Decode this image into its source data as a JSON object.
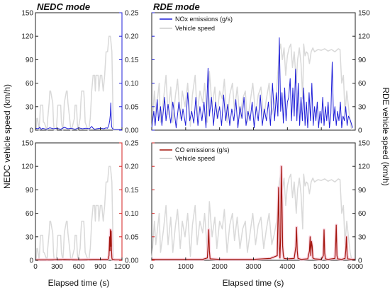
{
  "chart_data": {
    "type": "line",
    "titles": {
      "nedc": "NEDC mode",
      "rde": "RDE mode"
    },
    "axes": {
      "x_label": "Elapsed time (s)",
      "left_label": "NEDC vehicle speed (km/h)",
      "right_label": "RDE vehicle speed (km/h)",
      "nedc_x": {
        "min": 0,
        "max": 1200,
        "ticks": [
          0,
          300,
          600,
          900,
          1200
        ]
      },
      "rde_x": {
        "min": 0,
        "max": 6000,
        "ticks": [
          0,
          1000,
          2000,
          3000,
          4000,
          5000,
          6000
        ]
      },
      "speed": {
        "min": 0,
        "max": 150,
        "ticks": [
          0,
          30,
          60,
          90,
          120,
          150
        ]
      },
      "emission": {
        "min": 0,
        "max": 0.25,
        "ticks": [
          0.0,
          0.05,
          0.1,
          0.15,
          0.2,
          0.25
        ]
      }
    },
    "legend": {
      "top": [
        "NOx emissions  (g/s)",
        "Vehicle speed"
      ],
      "bottom": [
        "CO emissions (g/s)",
        "Vehicle speed"
      ]
    },
    "colors": {
      "nox": "#1f1fd8",
      "co": "#a3160d",
      "speed": "#d9d9d9",
      "co_shadow": "#f7c6d6",
      "emission_axis_blue": "#1f1fd8",
      "emission_axis_red": "#d42020"
    },
    "nedc_speed": {
      "x": [
        0,
        10,
        20,
        30,
        50,
        60,
        70,
        100,
        110,
        120,
        160,
        170,
        190,
        200,
        210,
        240,
        250,
        260,
        290,
        300,
        310,
        350,
        360,
        380,
        390,
        400,
        430,
        440,
        450,
        480,
        490,
        500,
        540,
        550,
        570,
        580,
        590,
        620,
        630,
        640,
        670,
        680,
        690,
        730,
        740,
        760,
        770,
        780,
        800,
        820,
        830,
        840,
        870,
        880,
        900,
        920,
        940,
        960,
        980,
        990,
        1000,
        1020,
        1040,
        1060,
        1080,
        1100,
        1120,
        1140,
        1160,
        1180
      ],
      "y": [
        0,
        0,
        15,
        15,
        0,
        15,
        32,
        32,
        10,
        10,
        0,
        15,
        35,
        50,
        50,
        35,
        10,
        0,
        0,
        15,
        32,
        32,
        10,
        0,
        15,
        35,
        50,
        50,
        35,
        10,
        0,
        0,
        15,
        32,
        32,
        10,
        0,
        15,
        35,
        50,
        50,
        35,
        10,
        0,
        0,
        15,
        32,
        50,
        70,
        70,
        50,
        70,
        70,
        50,
        70,
        70,
        50,
        70,
        100,
        100,
        100,
        120,
        120,
        100,
        0,
        0,
        0,
        0,
        0,
        0
      ]
    },
    "nedc_nox": {
      "x": [
        0,
        40,
        60,
        80,
        100,
        150,
        200,
        250,
        300,
        350,
        400,
        450,
        500,
        550,
        600,
        650,
        700,
        750,
        780,
        800,
        820,
        850,
        900,
        950,
        980,
        1000,
        1020,
        1030,
        1040,
        1045,
        1050,
        1055,
        1060,
        1065,
        1080,
        1100,
        1150,
        1200
      ],
      "y": [
        0.004,
        0.003,
        0.006,
        0.002,
        0.004,
        0.002,
        0.005,
        0.003,
        0.004,
        0.002,
        0.006,
        0.003,
        0.004,
        0.002,
        0.005,
        0.003,
        0.004,
        0.003,
        0.008,
        0.004,
        0.002,
        0.003,
        0.004,
        0.003,
        0.005,
        0.004,
        0.012,
        0.02,
        0.035,
        0.058,
        0.03,
        0.01,
        0.006,
        0.004,
        0.002,
        0.001,
        0.001,
        0.001
      ]
    },
    "nedc_co": {
      "x": [
        0,
        200,
        400,
        600,
        800,
        1000,
        1010,
        1020,
        1030,
        1035,
        1040,
        1045,
        1050,
        1055,
        1060,
        1065,
        1080,
        1100,
        1200
      ],
      "y": [
        0.001,
        0.001,
        0.002,
        0.001,
        0.002,
        0.002,
        0.003,
        0.01,
        0.05,
        0.02,
        0.065,
        0.03,
        0.062,
        0.02,
        0.005,
        0.002,
        0.002,
        0.001,
        0.001
      ]
    },
    "rde_speed": {
      "x": [
        0,
        80,
        120,
        220,
        260,
        350,
        420,
        480,
        560,
        620,
        700,
        760,
        840,
        900,
        980,
        1060,
        1140,
        1200,
        1280,
        1340,
        1420,
        1500,
        1560,
        1640,
        1700,
        1780,
        1860,
        1920,
        2000,
        2080,
        2140,
        2220,
        2300,
        2380,
        2440,
        2520,
        2600,
        2680,
        2760,
        2820,
        2900,
        2980,
        3060,
        3140,
        3220,
        3300,
        3380,
        3460,
        3540,
        3620,
        3680,
        3720,
        3760,
        3800,
        3850,
        3900,
        3950,
        4000,
        4050,
        4100,
        4150,
        4200,
        4260,
        4300,
        4350,
        4400,
        4450,
        4480,
        4520,
        4560,
        4600,
        4650,
        4700,
        4750,
        4800,
        4900,
        5000,
        5100,
        5200,
        5300,
        5400,
        5450,
        5500,
        5550,
        5600,
        5650,
        5700,
        5750,
        5800,
        5850,
        5900
      ],
      "y": [
        0,
        50,
        20,
        60,
        10,
        40,
        70,
        20,
        55,
        10,
        45,
        65,
        15,
        50,
        30,
        60,
        5,
        45,
        70,
        20,
        50,
        35,
        60,
        10,
        75,
        30,
        55,
        15,
        50,
        40,
        65,
        10,
        45,
        60,
        25,
        55,
        15,
        40,
        50,
        10,
        35,
        60,
        20,
        45,
        55,
        15,
        40,
        60,
        20,
        35,
        50,
        75,
        100,
        110,
        90,
        105,
        70,
        95,
        105,
        110,
        80,
        100,
        60,
        90,
        105,
        85,
        40,
        110,
        95,
        100,
        98,
        85,
        100,
        105,
        100,
        103,
        102,
        104,
        101,
        103,
        100,
        102,
        104,
        103,
        60,
        70,
        20,
        50,
        30,
        10,
        0
      ]
    },
    "rde_nox": {
      "x": [
        0,
        60,
        100,
        160,
        200,
        260,
        300,
        380,
        420,
        480,
        560,
        620,
        680,
        720,
        800,
        880,
        920,
        1000,
        1060,
        1120,
        1180,
        1240,
        1300,
        1360,
        1420,
        1480,
        1540,
        1600,
        1660,
        1700,
        1760,
        1820,
        1880,
        1940,
        2000,
        2060,
        2120,
        2180,
        2240,
        2300,
        2360,
        2420,
        2480,
        2540,
        2600,
        2660,
        2720,
        2780,
        2840,
        2900,
        2960,
        3020,
        3080,
        3140,
        3200,
        3260,
        3320,
        3380,
        3440,
        3500,
        3560,
        3620,
        3680,
        3720,
        3760,
        3800,
        3840,
        3880,
        3920,
        3960,
        4000,
        4040,
        4080,
        4120,
        4160,
        4200,
        4240,
        4280,
        4320,
        4360,
        4400,
        4440,
        4480,
        4520,
        4560,
        4600,
        4640,
        4680,
        4720,
        4760,
        4800,
        4840,
        4880,
        4920,
        4960,
        5000,
        5040,
        5080,
        5120,
        5160,
        5200,
        5240,
        5280,
        5320,
        5360,
        5400,
        5440,
        5480,
        5520,
        5560,
        5600,
        5640,
        5680,
        5720,
        5760,
        5800,
        5860,
        5920
      ],
      "y": [
        0.005,
        0.04,
        0.01,
        0.065,
        0.02,
        0.05,
        0.01,
        0.07,
        0.02,
        0.055,
        0.015,
        0.06,
        0.03,
        0.005,
        0.06,
        0.02,
        0.045,
        0.01,
        0.08,
        0.02,
        0.04,
        0.015,
        0.07,
        0.01,
        0.05,
        0.02,
        0.06,
        0.005,
        0.132,
        0.03,
        0.07,
        0.01,
        0.06,
        0.025,
        0.05,
        0.01,
        0.075,
        0.02,
        0.055,
        0.01,
        0.045,
        0.02,
        0.065,
        0.005,
        0.05,
        0.025,
        0.07,
        0.01,
        0.04,
        0.02,
        0.06,
        0.005,
        0.05,
        0.02,
        0.075,
        0.01,
        0.045,
        0.02,
        0.06,
        0.01,
        0.1,
        0.02,
        0.08,
        0.03,
        0.197,
        0.04,
        0.08,
        0.015,
        0.09,
        0.02,
        0.06,
        0.07,
        0.11,
        0.02,
        0.09,
        0.03,
        0.13,
        0.02,
        0.1,
        0.01,
        0.07,
        0.02,
        0.09,
        0.01,
        0.06,
        0.005,
        0.08,
        0.02,
        0.1,
        0.01,
        0.05,
        0.02,
        0.06,
        0.005,
        0.04,
        0.015,
        0.07,
        0.01,
        0.05,
        0.02,
        0.06,
        0.005,
        0.035,
        0.145,
        0.02,
        0.05,
        0.01,
        0.04,
        0.02,
        0.06,
        0.005,
        0.03,
        0.02,
        0.05,
        0.01,
        0.03,
        0.02,
        0.005
      ]
    },
    "rde_co": {
      "x": [
        0,
        500,
        1000,
        1500,
        1640,
        1660,
        1680,
        1700,
        1720,
        2000,
        2500,
        3000,
        3500,
        3700,
        3720,
        3740,
        3760,
        3780,
        3800,
        3820,
        3840,
        3860,
        3880,
        3900,
        4000,
        4200,
        4250,
        4270,
        4290,
        4310,
        4400,
        4600,
        4650,
        4670,
        4690,
        4710,
        4730,
        4750,
        4800,
        5000,
        5060,
        5080,
        5100,
        5120,
        5200,
        5400,
        5420,
        5440,
        5460,
        5480,
        5600,
        5700,
        5720,
        5740,
        5760,
        5780,
        5900,
        6000
      ],
      "y": [
        0.002,
        0.002,
        0.002,
        0.002,
        0.005,
        0.03,
        0.065,
        0.02,
        0.003,
        0.002,
        0.002,
        0.002,
        0.004,
        0.01,
        0.08,
        0.155,
        0.03,
        0.005,
        0.05,
        0.2,
        0.12,
        0.03,
        0.01,
        0.004,
        0.003,
        0.004,
        0.03,
        0.07,
        0.02,
        0.004,
        0.002,
        0.003,
        0.02,
        0.05,
        0.01,
        0.04,
        0.03,
        0.005,
        0.003,
        0.002,
        0.01,
        0.065,
        0.015,
        0.003,
        0.002,
        0.004,
        0.03,
        0.075,
        0.01,
        0.003,
        0.002,
        0.004,
        0.02,
        0.05,
        0.01,
        0.003,
        0.002,
        0.002
      ]
    }
  }
}
